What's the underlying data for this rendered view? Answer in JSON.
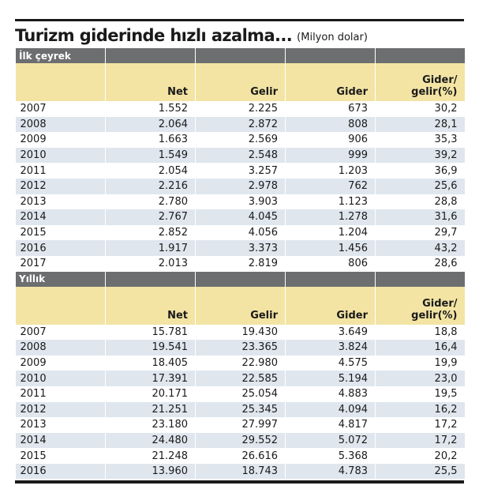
{
  "title": "Turizm giderinde hızlı azalma...",
  "subtitle": "(Milyon dolar)",
  "columns": [
    "",
    "Net",
    "Gelir",
    "Gider",
    "Gider/",
    "gelir(%)"
  ],
  "sections": [
    {
      "label": "İlk çeyrek",
      "rows": [
        [
          "2007",
          "1.552",
          "2.225",
          "673",
          "30,2"
        ],
        [
          "2008",
          "2.064",
          "2.872",
          "808",
          "28,1"
        ],
        [
          "2009",
          "1.663",
          "2.569",
          "906",
          "35,3"
        ],
        [
          "2010",
          "1.549",
          "2.548",
          "999",
          "39,2"
        ],
        [
          "2011",
          "2.054",
          "3.257",
          "1.203",
          "36,9"
        ],
        [
          "2012",
          "2.216",
          "2.978",
          "762",
          "25,6"
        ],
        [
          "2013",
          "2.780",
          "3.903",
          "1.123",
          "28,8"
        ],
        [
          "2014",
          "2.767",
          "4.045",
          "1.278",
          "31,6"
        ],
        [
          "2015",
          "2.852",
          "4.056",
          "1.204",
          "29,7"
        ],
        [
          "2016",
          "1.917",
          "3.373",
          "1.456",
          "43,2"
        ],
        [
          "2017",
          "2.013",
          "2.819",
          "806",
          "28,6"
        ]
      ]
    },
    {
      "label": "Yıllık",
      "rows": [
        [
          "2007",
          "15.781",
          "19.430",
          "3.649",
          "18,8"
        ],
        [
          "2008",
          "19.541",
          "23.365",
          "3.824",
          "16,4"
        ],
        [
          "2009",
          "18.405",
          "22.980",
          "4.575",
          "19,9"
        ],
        [
          "2010",
          "17.391",
          "22.585",
          "5.194",
          "23,0"
        ],
        [
          "2011",
          "20.171",
          "25.054",
          "4.883",
          "19,5"
        ],
        [
          "2012",
          "21.251",
          "25.345",
          "4.094",
          "16,2"
        ],
        [
          "2013",
          "23.180",
          "27.997",
          "4.817",
          "17,2"
        ],
        [
          "2014",
          "24.480",
          "29.552",
          "5.072",
          "17,2"
        ],
        [
          "2015",
          "21.248",
          "26.616",
          "5.368",
          "20,2"
        ],
        [
          "2016",
          "13.960",
          "18.743",
          "4.783",
          "25,5"
        ]
      ]
    }
  ]
}
